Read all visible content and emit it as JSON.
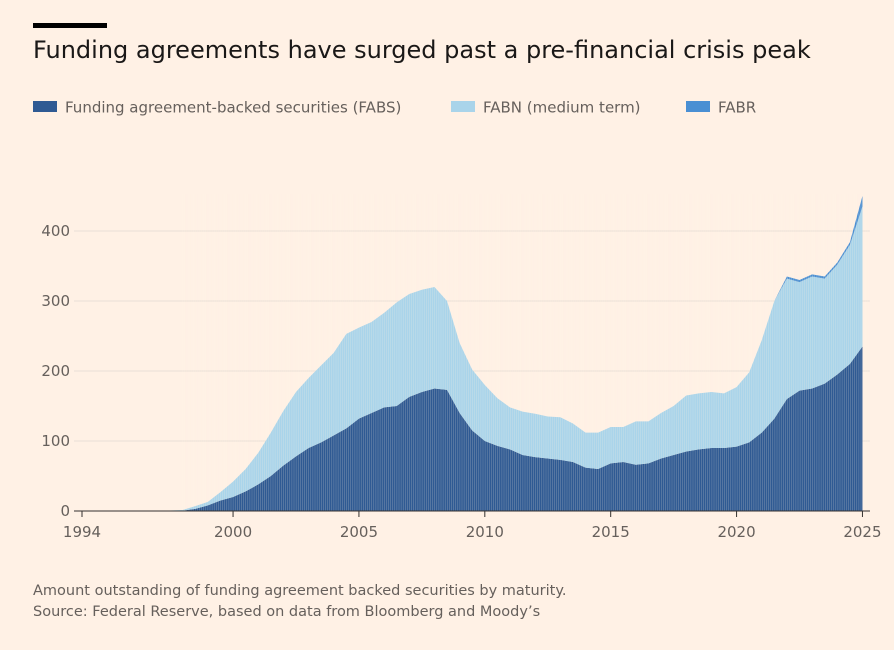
{
  "header": {
    "title": "Funding agreements have surged past a pre-financial crisis peak"
  },
  "footer": {
    "note": "Amount outstanding of funding agreement backed securities by maturity.",
    "source": "Source: Federal Reserve, based on data from Bloomberg and Moody’s"
  },
  "colors": {
    "background": "#fff1e5",
    "fabs": "#2f5a93",
    "fabn": "#a9d4ea",
    "fabr": "#4a8fd3",
    "grid": "#e9dfd6",
    "axis": "#66605c"
  },
  "chart_data": {
    "type": "area",
    "stacked": true,
    "title": "Funding agreements have surged past a pre-financial crisis peak",
    "xlabel": "",
    "ylabel": "",
    "xlim": [
      1994,
      2025.3
    ],
    "ylim": [
      0,
      450
    ],
    "yticks": [
      0,
      100,
      200,
      300,
      400
    ],
    "xticks": [
      1994,
      2000,
      2005,
      2010,
      2015,
      2020,
      2025
    ],
    "legend_position": "top",
    "x": [
      1994,
      1997,
      1998,
      1998.5,
      1999,
      1999.5,
      2000,
      2000.5,
      2001,
      2001.5,
      2002,
      2002.5,
      2003,
      2003.5,
      2004,
      2004.5,
      2005,
      2005.5,
      2006,
      2006.5,
      2007,
      2007.5,
      2008,
      2008.5,
      2009,
      2009.5,
      2010,
      2010.5,
      2011,
      2011.5,
      2012,
      2012.5,
      2013,
      2013.5,
      2014,
      2014.5,
      2015,
      2015.5,
      2016,
      2016.5,
      2017,
      2017.5,
      2018,
      2018.5,
      2019,
      2019.5,
      2020,
      2020.5,
      2021,
      2021.5,
      2022,
      2022.5,
      2023,
      2023.5,
      2024,
      2024.5,
      2025
    ],
    "series": [
      {
        "name": "Funding agreement-backed securities (FABS)",
        "color": "#2f5a93",
        "values": [
          0,
          0,
          0.5,
          3,
          8,
          15,
          20,
          28,
          38,
          50,
          65,
          78,
          90,
          98,
          108,
          118,
          132,
          140,
          148,
          150,
          163,
          170,
          175,
          173,
          140,
          115,
          100,
          93,
          88,
          80,
          77,
          75,
          73,
          70,
          62,
          60,
          68,
          70,
          66,
          68,
          75,
          80,
          85,
          88,
          90,
          90,
          92,
          98,
          112,
          132,
          160,
          172,
          175,
          182,
          195,
          210,
          235
        ]
      },
      {
        "name": "FABN (medium term)",
        "color": "#a9d4ea",
        "values": [
          0,
          0,
          1,
          4,
          5,
          12,
          22,
          32,
          45,
          62,
          78,
          92,
          100,
          110,
          118,
          135,
          130,
          130,
          135,
          148,
          147,
          146,
          145,
          127,
          100,
          87,
          80,
          68,
          60,
          62,
          62,
          60,
          61,
          55,
          50,
          52,
          52,
          50,
          62,
          60,
          65,
          70,
          80,
          80,
          80,
          78,
          85,
          100,
          132,
          168,
          172,
          155,
          160,
          150,
          157,
          170,
          200
        ]
      },
      {
        "name": "FABR",
        "color": "#4a8fd3",
        "values": [
          0,
          0,
          0,
          0,
          0,
          0,
          0,
          0,
          0,
          0,
          0,
          0,
          0,
          0,
          0,
          0,
          0,
          0,
          0,
          0,
          0,
          0,
          0,
          0,
          0,
          0,
          0,
          0,
          0,
          0,
          0,
          0,
          0,
          0,
          0,
          0,
          0,
          0,
          0,
          0,
          0,
          0,
          0,
          0,
          0,
          0,
          0,
          0,
          0,
          0,
          3,
          3,
          3,
          3,
          3,
          4,
          15
        ]
      }
    ]
  }
}
